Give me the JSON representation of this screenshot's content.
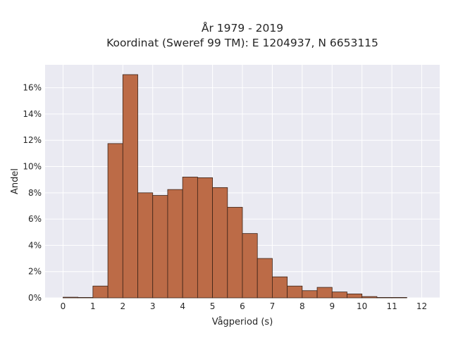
{
  "chart_data": {
    "type": "bar",
    "title_lines": [
      "År 1979 - 2019",
      "Koordinat (Sweref 99 TM): E 1204937, N 6653115"
    ],
    "xlabel": "Vågperiod (s)",
    "ylabel": "Andel",
    "xlim": [
      -0.6,
      12.6
    ],
    "ylim": [
      0,
      0.1775
    ],
    "x_ticks": [
      0,
      1,
      2,
      3,
      4,
      5,
      6,
      7,
      8,
      9,
      10,
      11,
      12
    ],
    "x_tick_labels": [
      "0",
      "1",
      "2",
      "3",
      "4",
      "5",
      "6",
      "7",
      "8",
      "9",
      "10",
      "11",
      "12"
    ],
    "y_ticks": [
      0,
      0.02,
      0.04,
      0.06,
      0.08,
      0.1,
      0.12,
      0.14,
      0.16
    ],
    "y_tick_labels": [
      "0%",
      "2%",
      "4%",
      "6%",
      "8%",
      "10%",
      "12%",
      "14%",
      "16%"
    ],
    "bin_width": 0.5,
    "bin_starts": [
      0,
      0.5,
      1,
      1.5,
      2,
      2.5,
      3,
      3.5,
      4,
      4.5,
      5,
      5.5,
      6,
      6.5,
      7,
      7.5,
      8,
      8.5,
      9,
      9.5,
      10,
      10.5,
      11
    ],
    "values": [
      0.0005,
      0.0,
      0.009,
      0.1175,
      0.17,
      0.08,
      0.078,
      0.0825,
      0.092,
      0.0915,
      0.084,
      0.069,
      0.049,
      0.03,
      0.016,
      0.009,
      0.0055,
      0.008,
      0.0045,
      0.003,
      0.001,
      0.0003,
      0.0002
    ],
    "grid": true,
    "bar_color": "#bc6b47",
    "bar_edge_color": "#3b2318",
    "background_color": "#eaeaf2"
  }
}
